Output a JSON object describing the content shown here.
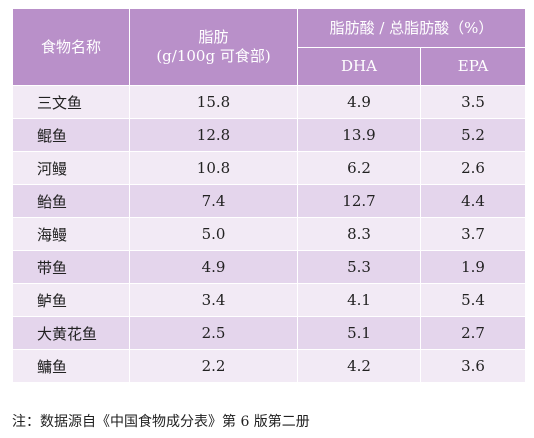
{
  "table": {
    "headers": {
      "food_name": "食物名称",
      "fat_line1": "脂肪",
      "fat_line2": "(g/100g 可食部)",
      "ratio_group": "脂肪酸 / 总脂肪酸（%）",
      "dha": "DHA",
      "epa": "EPA"
    },
    "rows": [
      {
        "name": "三文鱼",
        "fat": "15.8",
        "dha": "4.9",
        "epa": "3.5"
      },
      {
        "name": "鲲鱼",
        "fat": "12.8",
        "dha": "13.9",
        "epa": "5.2"
      },
      {
        "name": "河鳗",
        "fat": "10.8",
        "dha": "6.2",
        "epa": "2.6"
      },
      {
        "name": "鲐鱼",
        "fat": "7.4",
        "dha": "12.7",
        "epa": "4.4"
      },
      {
        "name": "海鳗",
        "fat": "5.0",
        "dha": "8.3",
        "epa": "3.7"
      },
      {
        "name": "带鱼",
        "fat": "4.9",
        "dha": "5.3",
        "epa": "1.9"
      },
      {
        "name": "鲈鱼",
        "fat": "3.4",
        "dha": "4.1",
        "epa": "5.4"
      },
      {
        "name": "大黄花鱼",
        "fat": "2.5",
        "dha": "5.1",
        "epa": "2.7"
      },
      {
        "name": "鳙鱼",
        "fat": "2.2",
        "dha": "4.2",
        "epa": "3.6"
      }
    ]
  },
  "note": "注：数据源自《中国食物成分表》第 6 版第二册",
  "colors": {
    "header_bg": "#b990c9",
    "row_light": "#f2eaf5",
    "row_dark": "#e4d5ec"
  }
}
